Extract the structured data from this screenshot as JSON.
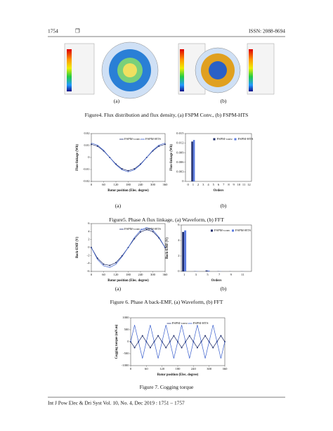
{
  "header": {
    "page": "1754",
    "symbol": "❒",
    "issn": "ISSN: 2088-8694"
  },
  "figures": [
    {
      "caption": "Figure4. Flux distribution and flux density, (a) FSPM Conv., (b) FSPM-HTS",
      "panels": [
        "(a)",
        "(b)"
      ]
    },
    {
      "caption": "Figure5. Phase A flux linkage, (a) Waveform, (b) FFT",
      "panels": [
        "(a)",
        "(b)"
      ],
      "charts": [
        {
          "type": "line",
          "xlabel": "Rotor position (Elec. degree)",
          "ylabel": "Flux-linkage (Wb)",
          "x": [
            0,
            30,
            60,
            90,
            120,
            150,
            180,
            210,
            240,
            270,
            300,
            330,
            360
          ],
          "series": [
            {
              "name": "FSPM-conv.",
              "color": "#1f2d6b",
              "marker": "circle",
              "values": [
                0.011,
                0.0095,
                0.0055,
                0,
                -0.0055,
                -0.0095,
                -0.011,
                -0.0095,
                -0.0055,
                0,
                0.0055,
                0.0095,
                0.011
              ]
            },
            {
              "name": "FSPM-HTS",
              "color": "#3a5fcd",
              "values": [
                0.012,
                0.0104,
                0.006,
                0,
                -0.006,
                -0.0104,
                -0.012,
                -0.0104,
                -0.006,
                0,
                0.006,
                0.0104,
                0.012
              ]
            }
          ],
          "xlim": [
            0,
            360
          ],
          "xticks": [
            0,
            60,
            120,
            180,
            240,
            300,
            360
          ],
          "ylim": [
            -0.02,
            0.02
          ],
          "yticks": [
            -0.02,
            -0.01,
            0,
            0.01,
            0.02
          ]
        },
        {
          "type": "bar",
          "xlabel": "Orders",
          "ylabel": "Flux-linkage (Wb)",
          "categories": [
            "0",
            "1",
            "2",
            "3",
            "4",
            "5",
            "6",
            "7",
            "8",
            "9",
            "10",
            "11",
            "12"
          ],
          "series": [
            {
              "name": "FSPM-conv.",
              "color": "#1f2d6b",
              "values": [
                0,
                0.0125,
                0,
                0,
                0,
                0,
                0,
                0,
                0,
                0,
                0,
                0,
                0
              ]
            },
            {
              "name": "FSPM-HTS",
              "color": "#5b7be0",
              "values": [
                0,
                0.013,
                0,
                0,
                0,
                0,
                0,
                0,
                0,
                0,
                0,
                0,
                0
              ]
            }
          ],
          "ylim": [
            0,
            0.015
          ],
          "yticks": [
            0,
            0.003,
            0.006,
            0.009,
            0.012,
            0.015
          ]
        }
      ]
    },
    {
      "caption": "Figure 6. Phase A back-EMF, (a) Waveform, (b) FFT",
      "panels": [
        "(a)",
        "(b)"
      ],
      "charts": [
        {
          "type": "line",
          "xlabel": "Rotor position (Elec. degree)",
          "ylabel": "Back-EMF (V)",
          "x": [
            0,
            30,
            60,
            90,
            120,
            150,
            180,
            210,
            240,
            270,
            300,
            330,
            360
          ],
          "series": [
            {
              "name": "FSPM-conv.",
              "color": "#1f2d6b",
              "marker": "circle",
              "values": [
                0,
                -2.7,
                -4.2,
                -4.5,
                -3.8,
                -2.1,
                0,
                2.2,
                3.9,
                4.5,
                4,
                2.4,
                0
              ]
            },
            {
              "name": "FSPM-HTS",
              "color": "#3a5fcd",
              "values": [
                0,
                -3,
                -4.6,
                -5,
                -4.2,
                -2.3,
                0,
                2.5,
                4.3,
                5,
                4.4,
                2.6,
                0
              ]
            }
          ],
          "xlim": [
            0,
            360
          ],
          "xticks": [
            0,
            60,
            120,
            180,
            240,
            300,
            360
          ],
          "ylim": [
            -6,
            6
          ],
          "yticks": [
            -6,
            -4,
            -2,
            0,
            2,
            4,
            6
          ]
        },
        {
          "type": "bar",
          "xlabel": "Orders",
          "ylabel": "Back-EMF (V)",
          "categories": [
            "1",
            null,
            "3",
            null,
            "5",
            null,
            "7",
            null,
            "9",
            null,
            "11",
            null
          ],
          "series": [
            {
              "name": "FSPM-conv.",
              "color": "#1f2d6b",
              "values": [
                5.1,
                0,
                0.02,
                0,
                0.12,
                0,
                0.02,
                0,
                0.01,
                0,
                0.01,
                0
              ]
            },
            {
              "name": "FSPM-HTS",
              "color": "#5b7be0",
              "values": [
                5.3,
                0,
                0.03,
                0,
                0.1,
                0,
                0.02,
                0,
                0,
                0,
                0.01,
                0
              ]
            }
          ],
          "ylim": [
            0,
            6
          ],
          "yticks": [
            0,
            2,
            4,
            6
          ]
        }
      ]
    },
    {
      "caption": "Figure 7. Cogging torque",
      "charts": [
        {
          "type": "line",
          "xlabel": "Rotor position (Elec. degree)",
          "ylabel": "Cogging torque (mN.m)",
          "x": [
            0,
            15,
            30,
            45,
            60,
            75,
            90,
            105,
            120,
            135,
            150,
            165,
            180,
            195,
            210,
            225,
            240,
            255,
            270,
            285,
            300,
            315,
            330,
            345,
            360
          ],
          "series": [
            {
              "name": "FSPM-conv.",
              "color": "#1f2d6b",
              "marker": "circle",
              "values": [
                0,
                -250,
                0,
                250,
                0,
                -250,
                0,
                250,
                0,
                -250,
                0,
                250,
                0,
                -250,
                0,
                250,
                0,
                -250,
                0,
                250,
                0,
                -250,
                0,
                250,
                0
              ]
            },
            {
              "name": "FSPM-HTS",
              "color": "#3a5fcd",
              "values": [
                0,
                700,
                0,
                -700,
                0,
                700,
                0,
                -700,
                0,
                700,
                0,
                -700,
                0,
                700,
                0,
                -700,
                0,
                700,
                0,
                -700,
                0,
                700,
                0,
                -700,
                0
              ]
            }
          ],
          "xlim": [
            0,
            360
          ],
          "xticks": [
            0,
            60,
            120,
            180,
            240,
            300,
            360
          ],
          "ylim": [
            -1000,
            1000
          ],
          "yticks": [
            -1000,
            -500,
            0,
            500,
            1000
          ]
        }
      ]
    }
  ],
  "footer": "Int J Pow Elec & Dri Syst Vol. 10, No. 4, Dec 2019 :  1751 – 1757"
}
